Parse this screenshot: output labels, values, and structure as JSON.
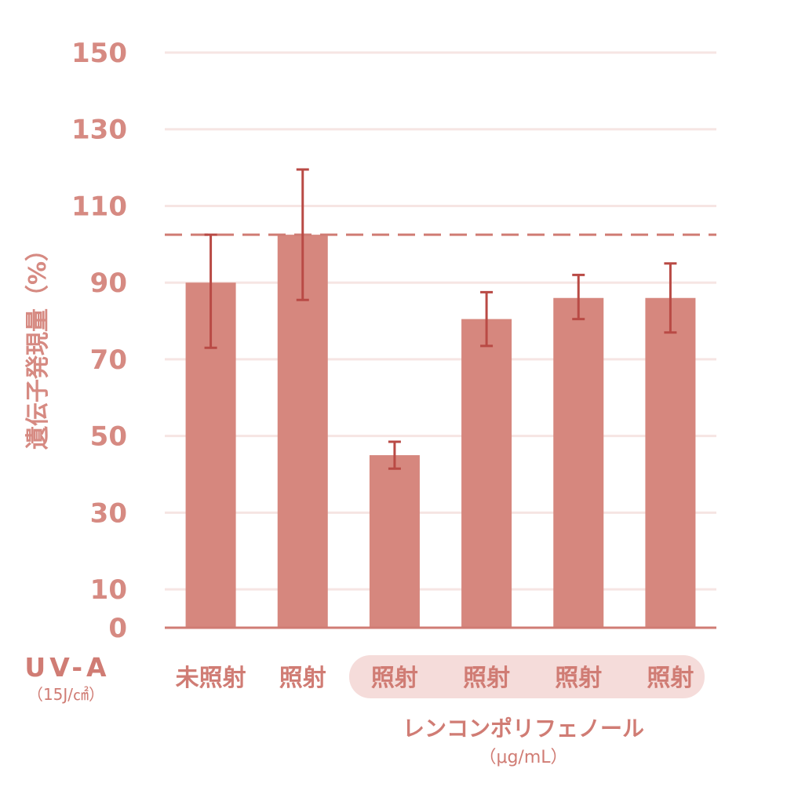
{
  "chart_data": {
    "type": "bar",
    "title": "",
    "ylabel": "遺伝子発現量（%）",
    "xlabel": "",
    "ylim": [
      0,
      150
    ],
    "yticks": [
      0,
      10,
      30,
      50,
      70,
      90,
      110,
      130,
      150
    ],
    "grid": true,
    "categories": [
      "未照射",
      "照射",
      "照射",
      "照射",
      "照射",
      "照射"
    ],
    "values": [
      90,
      102.5,
      45,
      80.5,
      86,
      86
    ],
    "error": [
      [
        73,
        102.5
      ],
      [
        85.5,
        119.5
      ],
      [
        41.5,
        48.5
      ],
      [
        73.5,
        87.5
      ],
      [
        80.5,
        92
      ],
      [
        77,
        95
      ]
    ],
    "reference_line": 102.5,
    "colors": {
      "bar": "#d6877e",
      "error": "#b94a45",
      "grid": "#f6e5e3",
      "text": "#d07c74",
      "highlight": "#f5dcda"
    },
    "uva_label": "UV-A",
    "uva_sub": "（15J/㎠）",
    "group_label": "レンコンポリフェノール",
    "group_sub": "（μg/mL）"
  }
}
